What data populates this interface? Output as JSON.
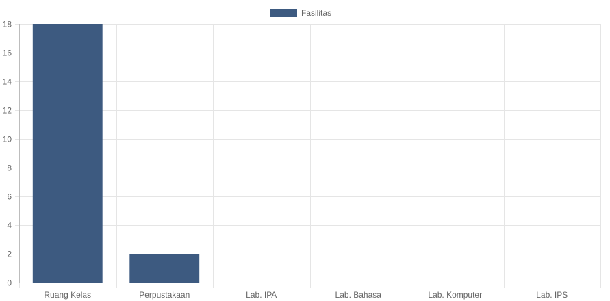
{
  "chart_data": {
    "type": "bar",
    "categories": [
      "Ruang Kelas",
      "Perpustakaan",
      "Lab. IPA",
      "Lab. Bahasa",
      "Lab. Komputer",
      "Lab. IPS"
    ],
    "series": [
      {
        "name": "Fasilitas",
        "values": [
          18,
          2,
          0,
          0,
          0,
          0
        ],
        "color": "#3d5a80"
      }
    ],
    "ylim": [
      0,
      18
    ],
    "yticks": [
      0,
      2,
      4,
      6,
      8,
      10,
      12,
      14,
      16,
      18
    ],
    "grid": true,
    "legend_position": "top-center",
    "colors": {
      "bar": "#3d5a80",
      "grid": "#e5e5e5",
      "axis": "#bdbdbd",
      "tick_text": "#666666"
    }
  }
}
